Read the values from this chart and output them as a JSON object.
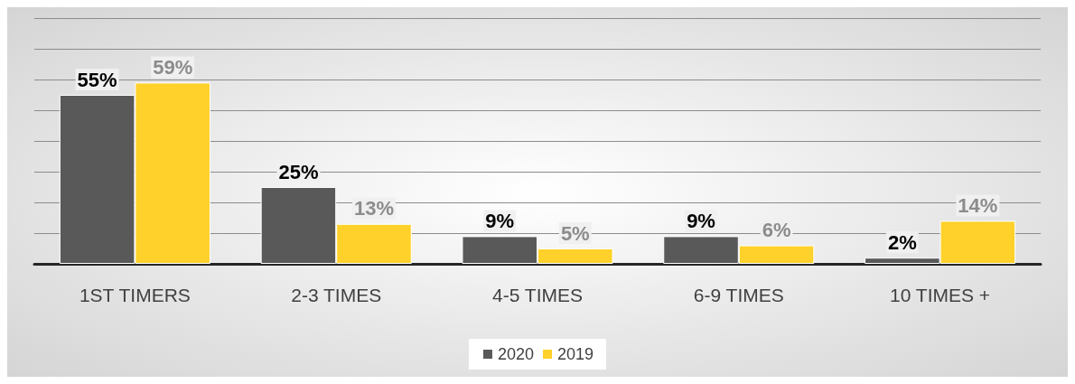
{
  "chart_data": {
    "type": "bar",
    "categories": [
      "1ST TIMERS",
      "2-3 TIMES",
      "4-5 TIMES",
      "6-9 TIMES",
      "10 TIMES +"
    ],
    "series": [
      {
        "name": "2020",
        "color": "#595959",
        "values": [
          55,
          25,
          9,
          9,
          2
        ],
        "value_labels": [
          "55%",
          "25%",
          "9%",
          "9%",
          "2%"
        ]
      },
      {
        "name": "2019",
        "color": "#ffd12a",
        "values": [
          59,
          13,
          5,
          6,
          14
        ],
        "value_labels": [
          "59%",
          "13%",
          "5%",
          "6%",
          "14%"
        ]
      }
    ],
    "ylim": [
      0,
      80
    ],
    "yticks": [
      {
        "value": 0,
        "label": null
      },
      {
        "value": 10,
        "label": null
      },
      {
        "value": 20,
        "label": null
      },
      {
        "value": 30,
        "label": null
      },
      {
        "value": 40,
        "label": null
      },
      {
        "value": 50,
        "label": null
      },
      {
        "value": 60,
        "label": null
      },
      {
        "value": 70,
        "label": null
      },
      {
        "value": 80,
        "label": null
      }
    ],
    "tick_labels": "x",
    "grid": "y",
    "legend": "bottom"
  }
}
